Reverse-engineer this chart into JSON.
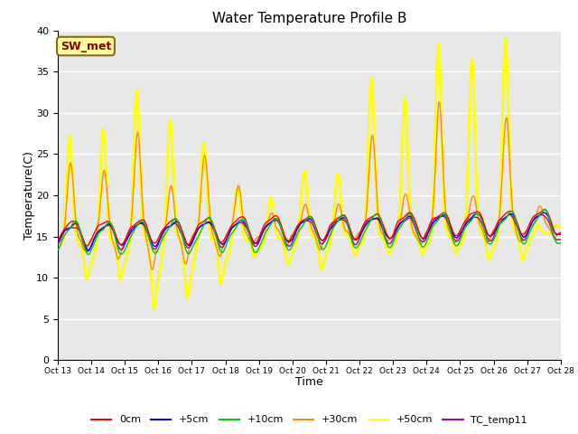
{
  "title": "Water Temperature Profile B",
  "xlabel": "Time",
  "ylabel": "Temperature(C)",
  "ylim": [
    0,
    40
  ],
  "yticks": [
    0,
    5,
    10,
    15,
    20,
    25,
    30,
    35,
    40
  ],
  "xtick_labels": [
    "Oct 13",
    "Oct 14",
    "Oct 15",
    "Oct 16",
    "Oct 17",
    "Oct 18",
    "Oct 19",
    "Oct 20",
    "Oct 21",
    "Oct 22",
    "Oct 23",
    "Oct 24",
    "Oct 25",
    "Oct 26",
    "Oct 27",
    "Oct 28"
  ],
  "annotation": "SW_met",
  "annotation_color": "#8B0000",
  "annotation_bg": "#FFFF99",
  "bg_color": "#E8E8E8",
  "grid_color": "#FFFFFF",
  "series": {
    "0cm": {
      "color": "#FF0000",
      "lw": 1.0
    },
    "+5cm": {
      "color": "#0000FF",
      "lw": 1.0
    },
    "+10cm": {
      "color": "#00CC00",
      "lw": 1.0
    },
    "+30cm": {
      "color": "#FF8C00",
      "lw": 1.0
    },
    "+50cm": {
      "color": "#FFFF00",
      "lw": 2.0
    },
    "TC_temp11": {
      "color": "#AA00AA",
      "lw": 1.0
    }
  }
}
